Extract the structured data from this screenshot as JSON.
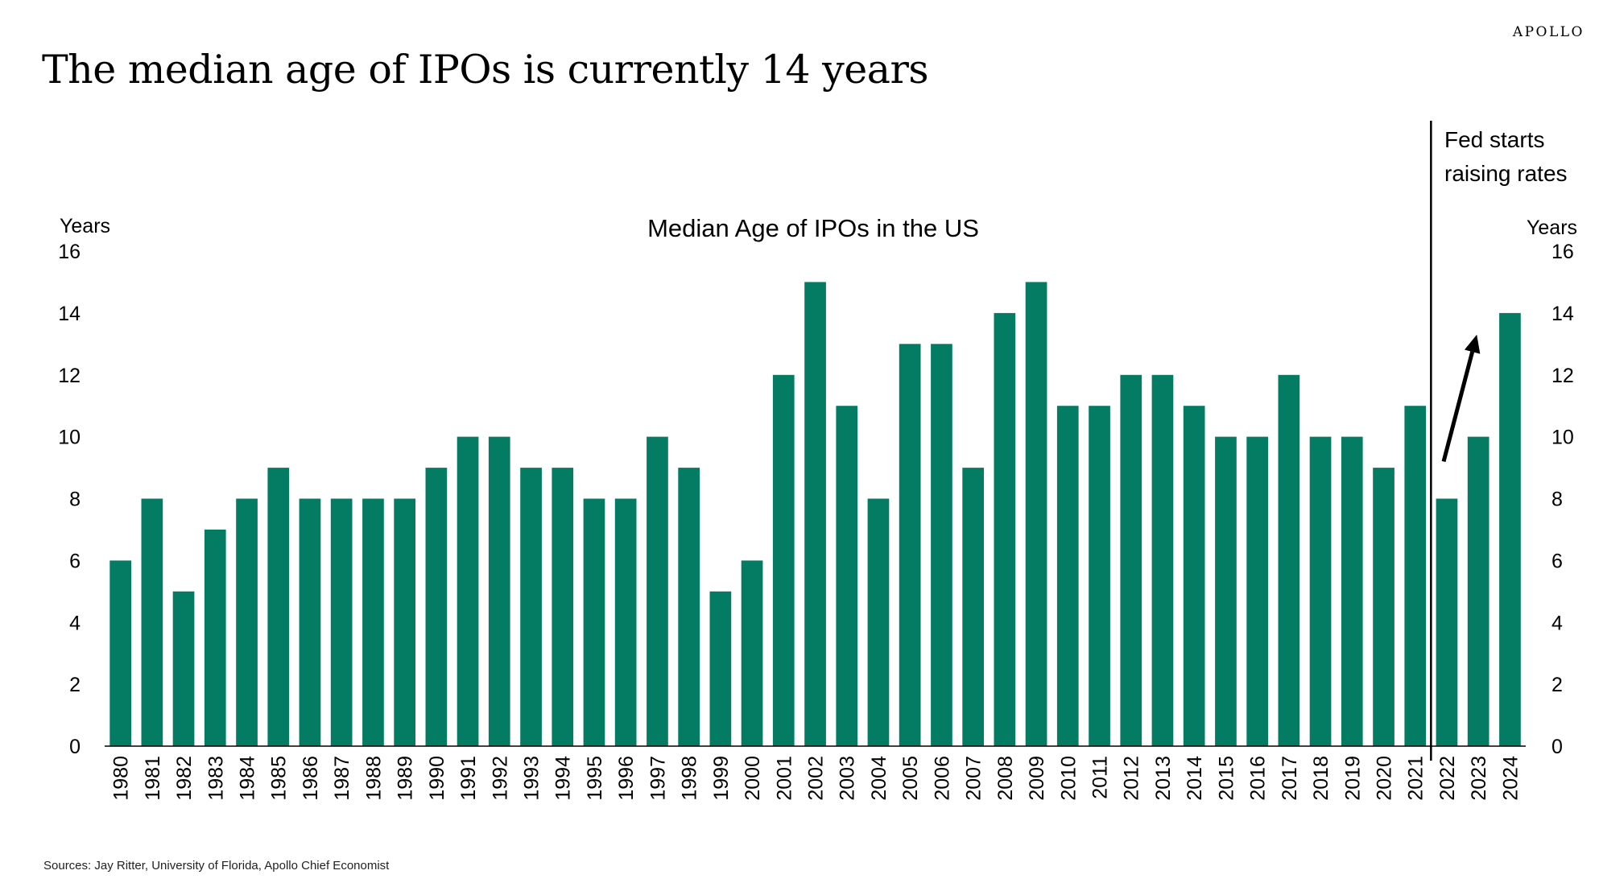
{
  "brand": "APOLLO",
  "headline": "The median age of IPOs is currently 14 years",
  "source": "Sources: Jay Ritter, University of Florida, Apollo Chief Economist",
  "colors": {
    "bar": "#047C63",
    "text": "#000000",
    "axis": "#000000"
  },
  "chart_data": {
    "type": "bar",
    "title": "Median Age of IPOs in the US",
    "ylabel_left": "Years",
    "ylabel_right": "Years",
    "ylim": [
      0,
      16
    ],
    "yticks": [
      0,
      2,
      4,
      6,
      8,
      10,
      12,
      14,
      16
    ],
    "categories": [
      "1980",
      "1981",
      "1982",
      "1983",
      "1984",
      "1985",
      "1986",
      "1987",
      "1988",
      "1989",
      "1990",
      "1991",
      "1992",
      "1993",
      "1994",
      "1995",
      "1996",
      "1997",
      "1998",
      "1999",
      "2000",
      "2001",
      "2002",
      "2003",
      "2004",
      "2005",
      "2006",
      "2007",
      "2008",
      "2009",
      "2010",
      "2011",
      "2012",
      "2013",
      "2014",
      "2015",
      "2016",
      "2017",
      "2018",
      "2019",
      "2020",
      "2021",
      "2022",
      "2023",
      "2024"
    ],
    "values": [
      6,
      8,
      5,
      7,
      8,
      9,
      8,
      8,
      8,
      8,
      9,
      10,
      10,
      9,
      9,
      8,
      8,
      10,
      9,
      5,
      6,
      12,
      15,
      11,
      8,
      13,
      13,
      9,
      14,
      15,
      11,
      11,
      12,
      12,
      11,
      10,
      10,
      12,
      10,
      10,
      9,
      11,
      8,
      10,
      14
    ],
    "annotation": {
      "lines": [
        "Fed starts",
        "raising rates"
      ],
      "marker_between": [
        "2021",
        "2022"
      ],
      "arrow_from": "2022",
      "arrow_to": "2023"
    }
  }
}
